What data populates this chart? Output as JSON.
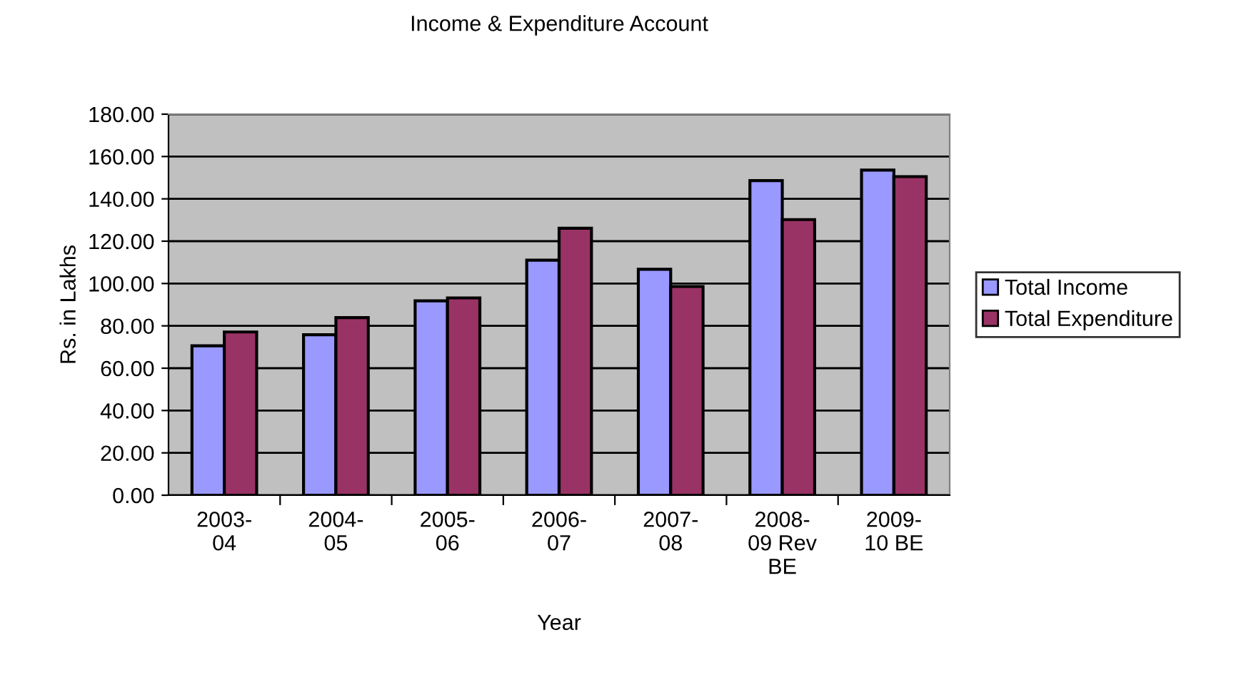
{
  "chart_data": {
    "type": "bar",
    "title": "Income & Expenditure Account",
    "xlabel": "Year",
    "ylabel": "Rs. in Lakhs",
    "categories": [
      "2003-\n04",
      "2004-\n05",
      "2005-\n06",
      "2006-\n07",
      "2007-\n08",
      "2008-\n09 Rev\nBE",
      "2009-\n10 BE"
    ],
    "series": [
      {
        "name": "Total Income",
        "color": "#9999ff",
        "values": [
          70.6,
          75.8,
          91.8,
          111.0,
          106.7,
          148.6,
          153.6
        ]
      },
      {
        "name": "Total Expenditure",
        "color": "#993366",
        "values": [
          77.1,
          83.9,
          93.2,
          126.1,
          98.6,
          130.2,
          150.5
        ]
      }
    ],
    "ylim": [
      0,
      180
    ],
    "yticks": [
      {
        "value": 0,
        "label": "0.00"
      },
      {
        "value": 20,
        "label": "20.00"
      },
      {
        "value": 40,
        "label": "40.00"
      },
      {
        "value": 60,
        "label": "60.00"
      },
      {
        "value": 80,
        "label": "80.00"
      },
      {
        "value": 100,
        "label": "100.00"
      },
      {
        "value": 120,
        "label": "120.00"
      },
      {
        "value": 140,
        "label": "140.00"
      },
      {
        "value": 160,
        "label": "160.00"
      },
      {
        "value": 180,
        "label": "180.00"
      }
    ],
    "grid": "y",
    "legend": "right"
  }
}
